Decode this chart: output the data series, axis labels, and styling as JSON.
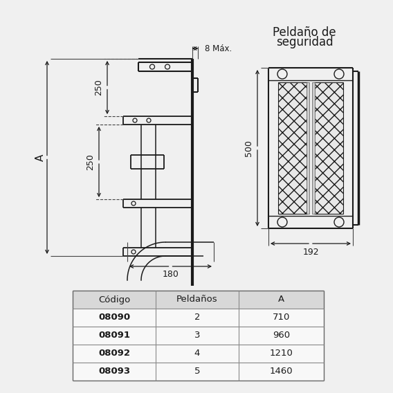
{
  "bg_color": "#f0f0f0",
  "title_right_line1": "Peldaño de",
  "title_right_line2": "seguridad",
  "dim_250_top": "250",
  "dim_8max": "8 Máx.",
  "dim_A": "A",
  "dim_250_bot": "250",
  "dim_180": "180",
  "dim_500": "500",
  "dim_192": "192",
  "table_headers": [
    "Código",
    "Peldaños",
    "A"
  ],
  "table_rows": [
    [
      "08090",
      "2",
      "710"
    ],
    [
      "08091",
      "3",
      "960"
    ],
    [
      "08092",
      "4",
      "1210"
    ],
    [
      "08093",
      "5",
      "1460"
    ]
  ],
  "line_color": "#1a1a1a",
  "table_bg_header": "#d8d8d8",
  "table_bg_data": "#f8f8f8",
  "table_line_color": "#888888",
  "text_color": "#1a1a1a"
}
